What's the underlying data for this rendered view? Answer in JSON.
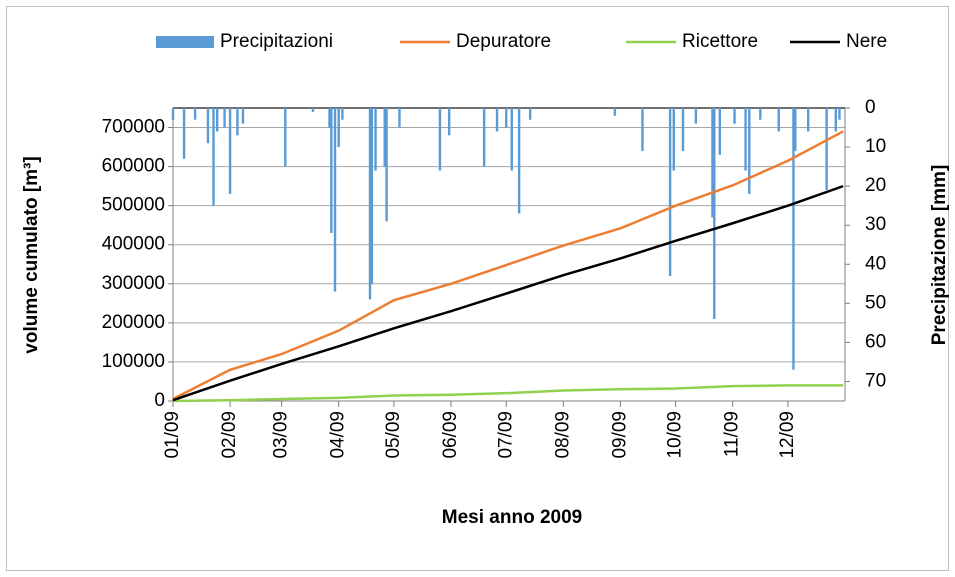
{
  "chart_data": {
    "type": "combo",
    "x_label": "Mesi anno 2009",
    "y_label": "volume cumulato  [m³]",
    "y2_label": "Precipitazione [mm]",
    "xlim": [
      0,
      365
    ],
    "xticks": [
      {
        "value": 0,
        "label": "01/09"
      },
      {
        "value": 31,
        "label": "02/09"
      },
      {
        "value": 59,
        "label": "03/09"
      },
      {
        "value": 90,
        "label": "04/09"
      },
      {
        "value": 120,
        "label": "05/09"
      },
      {
        "value": 151,
        "label": "06/09"
      },
      {
        "value": 181,
        "label": "07/09"
      },
      {
        "value": 212,
        "label": "08/09"
      },
      {
        "value": 243,
        "label": "09/09"
      },
      {
        "value": 273,
        "label": "10/09"
      },
      {
        "value": 304,
        "label": "11/09"
      },
      {
        "value": 334,
        "label": "12/09"
      }
    ],
    "ylim": [
      0,
      750000
    ],
    "yticks": [
      0,
      100000,
      200000,
      300000,
      400000,
      500000,
      600000,
      700000
    ],
    "y2lim": [
      75,
      0
    ],
    "y2ticks": [
      0,
      10,
      20,
      30,
      40,
      50,
      60,
      70
    ],
    "grid": true,
    "legend": "top",
    "series": [
      {
        "name": "Precipitazioni",
        "type": "bar",
        "axis": "y2",
        "color": "#5b9bd5",
        "x": [
          0,
          6,
          12,
          19,
          22,
          24,
          28,
          31,
          35,
          38,
          61,
          76,
          85,
          86,
          88,
          90,
          92,
          107,
          108,
          110,
          115,
          116,
          123,
          145,
          150,
          169,
          176,
          181,
          184,
          188,
          194,
          240,
          255,
          270,
          272,
          277,
          284,
          293,
          294,
          297,
          305,
          311,
          313,
          319,
          329,
          337,
          338,
          345,
          355,
          360,
          362
        ],
        "values": [
          3,
          13,
          3,
          9,
          25,
          6,
          5,
          22,
          7,
          4,
          15,
          1,
          5,
          32,
          47,
          10,
          3,
          49,
          45,
          16,
          15,
          29,
          5,
          16,
          7,
          15,
          6,
          5,
          16,
          27,
          3,
          2,
          11,
          43,
          16,
          11,
          4,
          28,
          54,
          12,
          4,
          16,
          22,
          3,
          6,
          67,
          11,
          6,
          21,
          6,
          3
        ]
      },
      {
        "name": "Depuratore",
        "type": "line",
        "color": "#ed7d31",
        "x": [
          0,
          31,
          59,
          90,
          120,
          151,
          181,
          212,
          243,
          273,
          304,
          334,
          364
        ],
        "values": [
          5000,
          80000,
          120000,
          180000,
          258000,
          300000,
          348000,
          398000,
          442000,
          500000,
          552000,
          615000,
          690000
        ]
      },
      {
        "name": "Ricettore",
        "type": "line",
        "color": "#92d050",
        "x": [
          0,
          31,
          59,
          90,
          120,
          151,
          181,
          212,
          243,
          273,
          304,
          334,
          364
        ],
        "values": [
          0,
          2000,
          5000,
          8000,
          14000,
          16000,
          20000,
          27000,
          30000,
          32000,
          38000,
          40000,
          40000
        ]
      },
      {
        "name": "Nere",
        "type": "line",
        "color": "#000000",
        "x": [
          0,
          31,
          59,
          90,
          120,
          151,
          181,
          212,
          243,
          273,
          304,
          334,
          364
        ],
        "values": [
          2000,
          52000,
          95000,
          140000,
          186000,
          230000,
          275000,
          322000,
          365000,
          410000,
          455000,
          500000,
          550000
        ]
      }
    ]
  }
}
